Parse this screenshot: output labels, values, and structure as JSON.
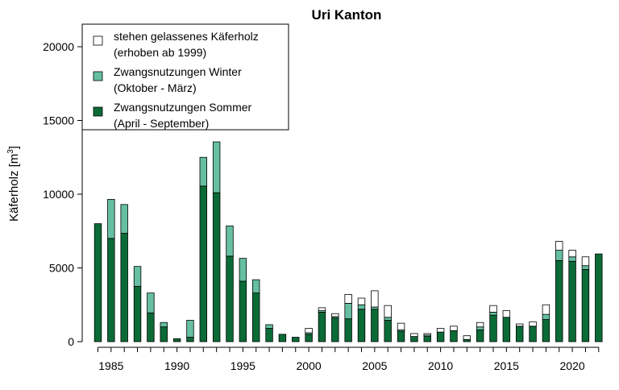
{
  "chart_data": {
    "type": "bar",
    "stacked": true,
    "title": "Uri Kanton",
    "ylabel": "Käferholz [m",
    "ylabel_sup": "3",
    "ylabel_close": "]",
    "ylim": [
      0,
      21000
    ],
    "y_ticks": [
      0,
      5000,
      10000,
      15000,
      20000
    ],
    "x_tick_labels": [
      "1985",
      "1990",
      "1995",
      "2000",
      "2005",
      "2010",
      "2015",
      "2020"
    ],
    "grid": false,
    "legend_position": "top-left",
    "years": [
      1984,
      1985,
      1986,
      1987,
      1988,
      1989,
      1990,
      1991,
      1992,
      1993,
      1994,
      1995,
      1996,
      1997,
      1998,
      1999,
      2000,
      2001,
      2002,
      2003,
      2004,
      2005,
      2006,
      2007,
      2008,
      2009,
      2010,
      2011,
      2012,
      2013,
      2014,
      2015,
      2016,
      2017,
      2018,
      2019,
      2020,
      2021,
      2022
    ],
    "series": [
      {
        "key": "summer",
        "legend": [
          "Zwangsnutzungen Sommer",
          "(April - September)"
        ],
        "color": "#0b6b37",
        "values": [
          8000,
          7000,
          7350,
          3750,
          1950,
          1000,
          200,
          300,
          10550,
          10100,
          5800,
          4100,
          3300,
          900,
          500,
          300,
          500,
          2000,
          1600,
          1550,
          2200,
          2200,
          1450,
          700,
          350,
          350,
          650,
          750,
          150,
          800,
          1800,
          1650,
          1050,
          1050,
          1500,
          5500,
          5450,
          4900,
          5950
        ]
      },
      {
        "key": "winter",
        "legend": [
          "Zwangsnutzungen Winter",
          "(Oktober - März)"
        ],
        "color": "#66bfa2",
        "values": [
          0,
          2650,
          1950,
          1350,
          1350,
          300,
          0,
          1150,
          1950,
          3450,
          2050,
          1550,
          900,
          250,
          0,
          0,
          100,
          100,
          100,
          1050,
          300,
          150,
          200,
          100,
          0,
          100,
          0,
          0,
          0,
          200,
          200,
          0,
          0,
          0,
          350,
          700,
          300,
          250,
          0
        ]
      },
      {
        "key": "standing",
        "legend": [
          "stehen gelassenes Käferholz",
          "(erhoben ab 1999)"
        ],
        "color": "#ffffff",
        "values": [
          0,
          0,
          0,
          0,
          0,
          0,
          0,
          0,
          0,
          0,
          0,
          0,
          0,
          0,
          0,
          0,
          300,
          200,
          200,
          600,
          450,
          1100,
          800,
          450,
          200,
          100,
          250,
          300,
          250,
          300,
          450,
          450,
          150,
          300,
          650,
          600,
          450,
          600,
          0
        ]
      }
    ]
  }
}
